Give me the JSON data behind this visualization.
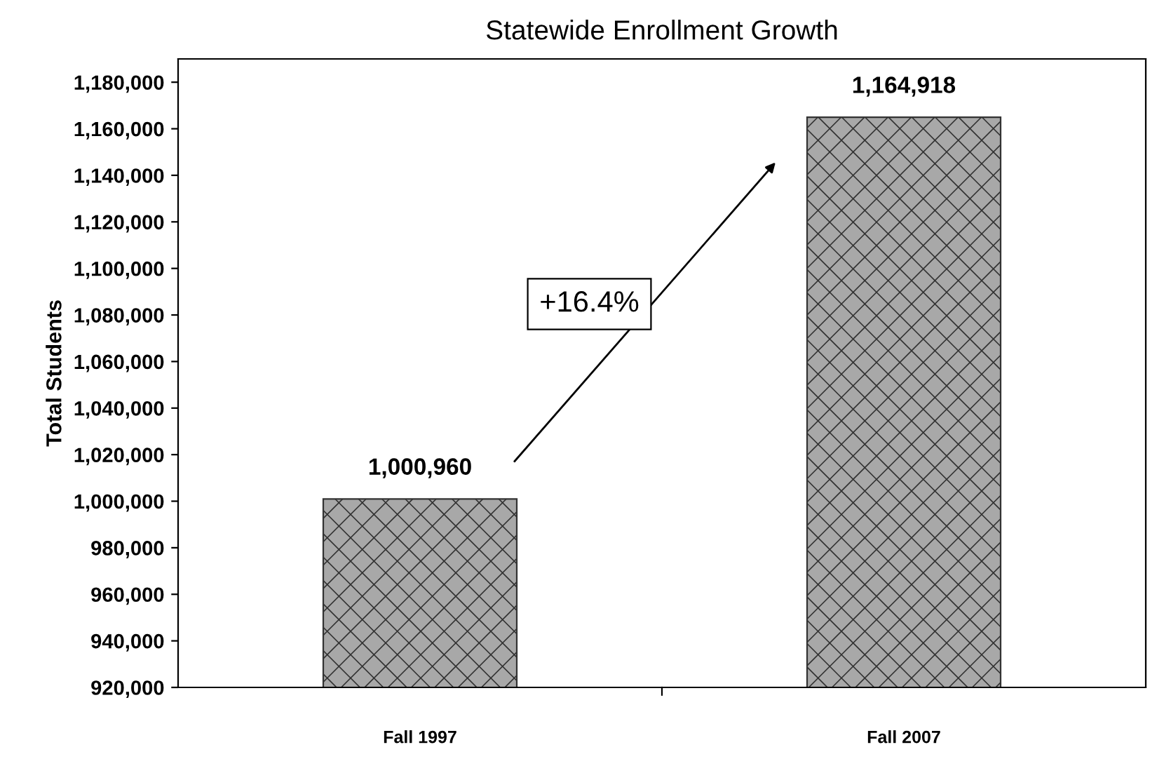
{
  "chart_data": {
    "type": "bar",
    "title": "Statewide Enrollment Growth",
    "ylabel": "Total Students",
    "categories": [
      "Fall 1997",
      "Fall 2007"
    ],
    "values": [
      1000960,
      1164918
    ],
    "value_labels": [
      "1,000,960",
      "1,164,918"
    ],
    "color": "#333333",
    "ylim": [
      920000,
      1190000
    ],
    "yticks": [
      {
        "value": 920000,
        "label": "920,000"
      },
      {
        "value": 940000,
        "label": "940,000"
      },
      {
        "value": 960000,
        "label": "960,000"
      },
      {
        "value": 980000,
        "label": "980,000"
      },
      {
        "value": 1000000,
        "label": "1,000,000"
      },
      {
        "value": 1020000,
        "label": "1,020,000"
      },
      {
        "value": 1040000,
        "label": "1,040,000"
      },
      {
        "value": 1060000,
        "label": "1,060,000"
      },
      {
        "value": 1080000,
        "label": "1,080,000"
      },
      {
        "value": 1100000,
        "label": "1,100,000"
      },
      {
        "value": 1120000,
        "label": "1,120,000"
      },
      {
        "value": 1140000,
        "label": "1,140,000"
      },
      {
        "value": 1160000,
        "label": "1,160,000"
      },
      {
        "value": 1180000,
        "label": "1,180,000"
      }
    ],
    "annotations": [
      "+16.4%"
    ],
    "grid": false,
    "legend": false
  }
}
